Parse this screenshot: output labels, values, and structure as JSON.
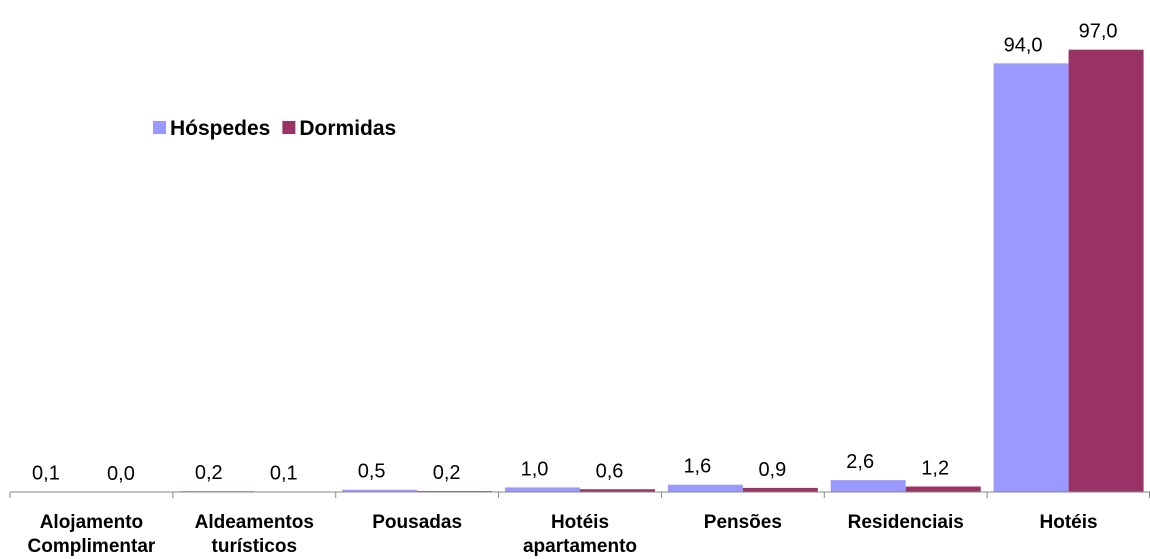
{
  "chart_data": {
    "type": "bar",
    "categories": [
      "Alojamento Complimentar",
      "Aldeamentos turísticos",
      "Pousadas",
      "Hotéis apartamento",
      "Pensões",
      "Residenciais",
      "Hotéis"
    ],
    "series": [
      {
        "name": "Hóspedes",
        "color": "#9999ff",
        "values": [
          0.1,
          0.2,
          0.5,
          1.0,
          1.6,
          2.6,
          94.0
        ],
        "value_labels": [
          "0,1",
          "0,2",
          "0,5",
          "1,0",
          "1,6",
          "2,6",
          "94,0"
        ]
      },
      {
        "name": "Dormidas",
        "color": "#993366",
        "values": [
          0.0,
          0.1,
          0.2,
          0.6,
          0.9,
          1.2,
          97.0
        ],
        "value_labels": [
          "0,0",
          "0,1",
          "0,2",
          "0,6",
          "0,9",
          "1,2",
          "97,0"
        ]
      }
    ],
    "ylim": [
      0,
      100
    ],
    "legend": "top-left"
  }
}
